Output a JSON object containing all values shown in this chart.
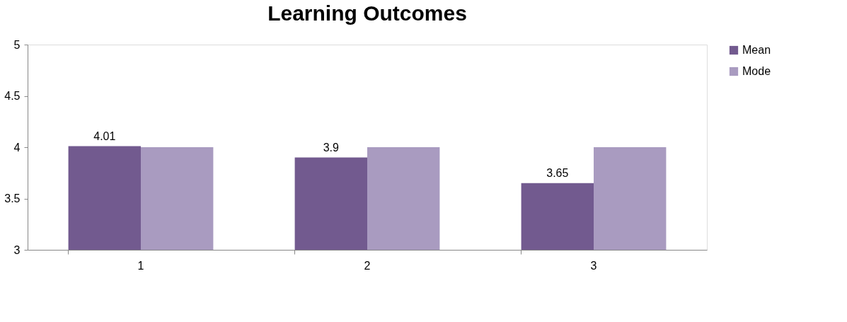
{
  "chart_data": {
    "type": "bar",
    "title": "Learning Outcomes",
    "categories": [
      "1",
      "2",
      "3"
    ],
    "series": [
      {
        "name": "Mean",
        "color": "#725a8f",
        "values": [
          4.01,
          3.9,
          3.65
        ],
        "value_labels": [
          "4.01",
          "3.9",
          "3.65"
        ]
      },
      {
        "name": "Mode",
        "color": "#a99bc0",
        "values": [
          4,
          4,
          4
        ]
      }
    ],
    "ylim": [
      3,
      5
    ],
    "yticks": [
      3,
      3.5,
      4,
      4.5,
      5
    ],
    "grid": false,
    "legend": "right"
  }
}
